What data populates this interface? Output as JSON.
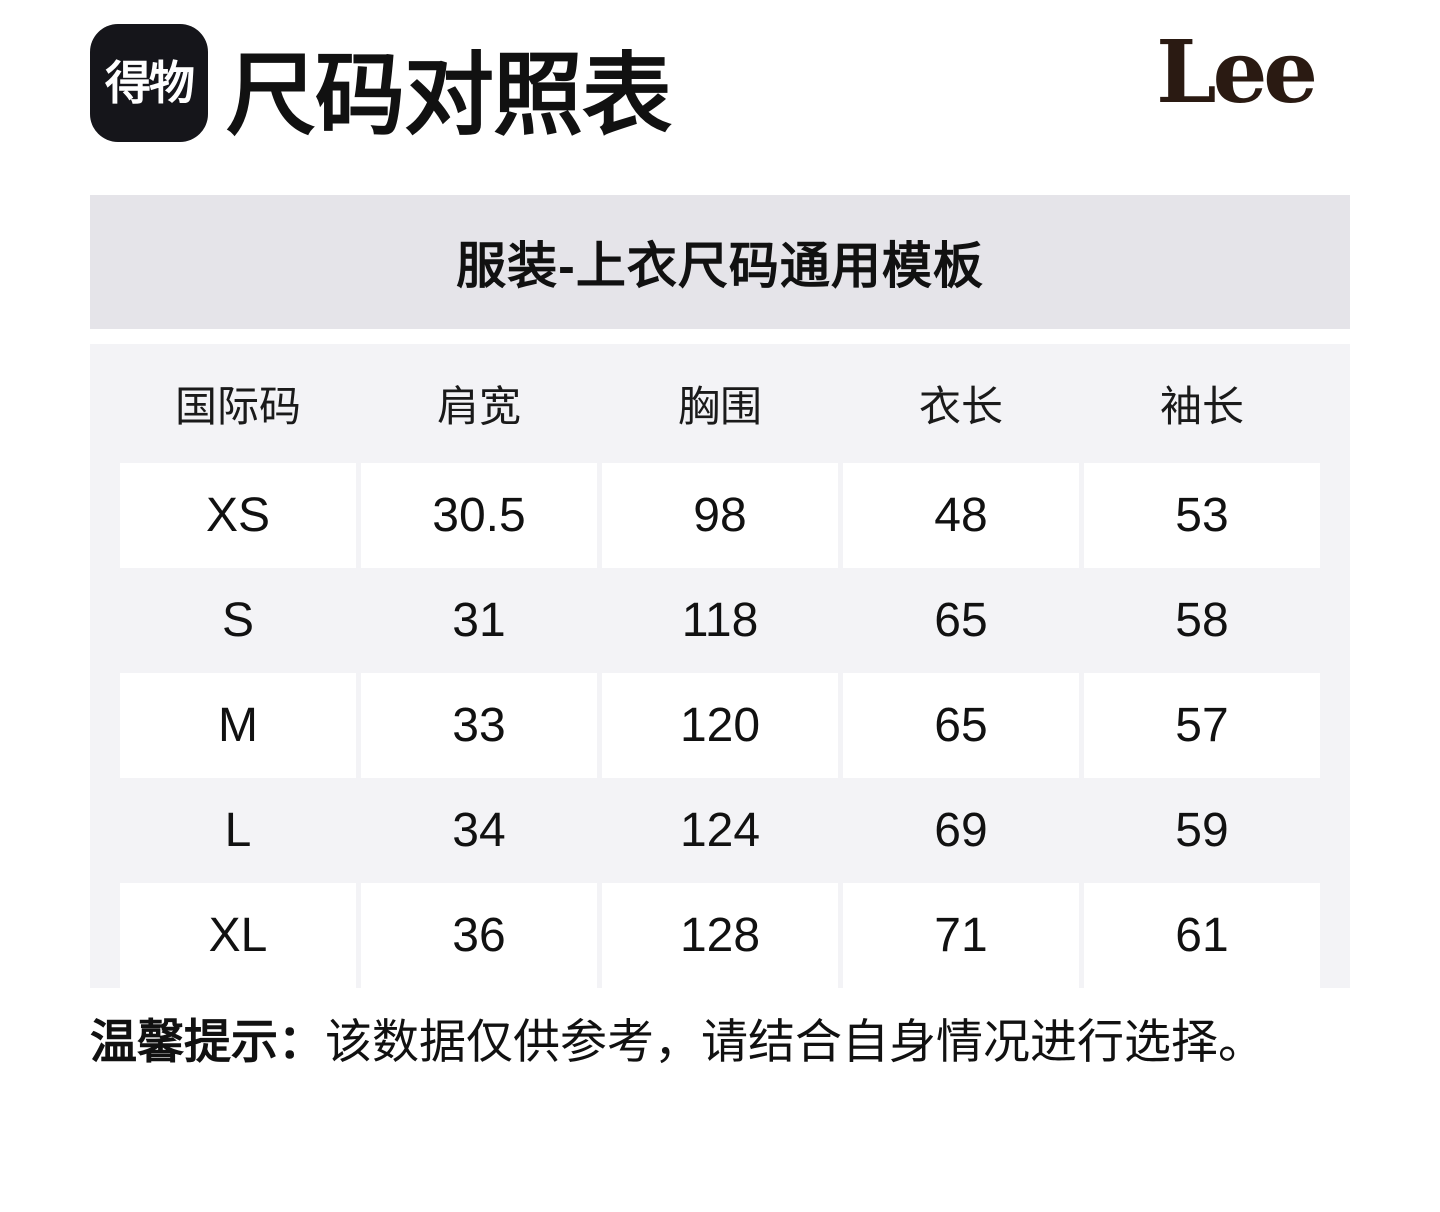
{
  "header": {
    "logo_text": "得物",
    "title": "尺码对照表",
    "brand": "Lee"
  },
  "banner": {
    "text": "服装-上衣尺码通用模板"
  },
  "table": {
    "columns": [
      "国际码",
      "肩宽",
      "胸围",
      "衣长",
      "袖长"
    ],
    "rows": [
      [
        "XS",
        "30.5",
        "98",
        "48",
        "53"
      ],
      [
        "S",
        "31",
        "118",
        "65",
        "58"
      ],
      [
        "M",
        "33",
        "120",
        "65",
        "57"
      ],
      [
        "L",
        "34",
        "124",
        "69",
        "59"
      ],
      [
        "XL",
        "36",
        "128",
        "71",
        "61"
      ]
    ]
  },
  "note": {
    "label": "温馨提示：",
    "text": "该数据仅供参考，请结合自身情况进行选择。"
  },
  "colors": {
    "banner_bg": "#e5e4e9",
    "table_bg": "#f3f3f6",
    "row_cell_bg": "#ffffff",
    "logo_badge_bg": "#15151a",
    "lee_brand_color": "#2a1a12",
    "text": "#111111"
  }
}
